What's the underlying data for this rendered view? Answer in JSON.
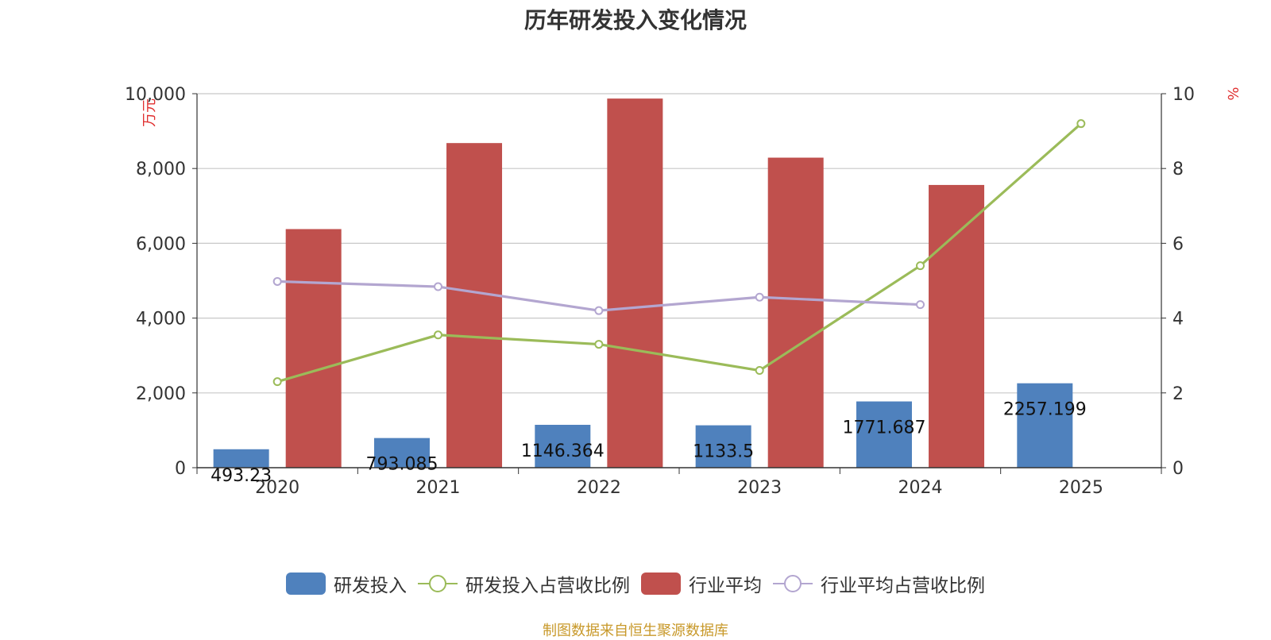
{
  "chart_data": {
    "type": "bar",
    "title": "历年研发投入变化情况",
    "categories": [
      "2020",
      "2021",
      "2022",
      "2023",
      "2024",
      "2025"
    ],
    "y_left": {
      "label": "万元",
      "ticks": [
        "0",
        "2,000",
        "4,000",
        "6,000",
        "8,000",
        "10,000"
      ],
      "ylim": [
        0,
        10000
      ]
    },
    "y_right": {
      "label": "%",
      "ticks": [
        "0",
        "2",
        "4",
        "6",
        "8",
        "10"
      ],
      "ylim": [
        0,
        10
      ]
    },
    "grid": true,
    "legend_position": "bottom",
    "series": [
      {
        "name": "研发投入",
        "type": "bar",
        "axis": "left",
        "color": "#4f81bd",
        "values": [
          493.23,
          793.085,
          1146.364,
          1133.5,
          1771.687,
          2257.199
        ],
        "labels": [
          "493.23",
          "793.085",
          "1146.364",
          "1133.5",
          "1771.687",
          "2257.199"
        ]
      },
      {
        "name": "研发投入占营收比例",
        "type": "line",
        "axis": "right",
        "color": "#9bbb59",
        "values": [
          2.3,
          3.55,
          3.3,
          2.6,
          5.4,
          9.2
        ]
      },
      {
        "name": "行业平均",
        "type": "bar",
        "axis": "left",
        "color": "#c0504d",
        "values": [
          6380,
          8680,
          9870,
          8290,
          7560,
          null
        ]
      },
      {
        "name": "行业平均占营收比例",
        "type": "line",
        "axis": "right",
        "color": "#b3a6d0",
        "values": [
          4.98,
          4.84,
          4.2,
          4.56,
          4.36,
          null
        ]
      }
    ]
  },
  "source_note": "制图数据来自恒生聚源数据库"
}
